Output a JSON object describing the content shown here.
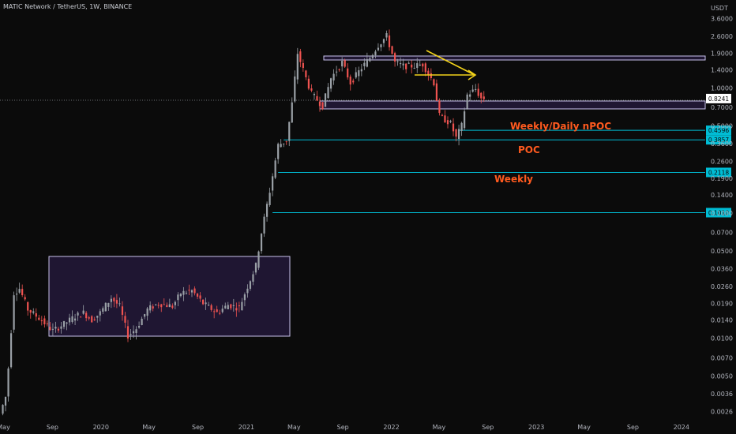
{
  "header": {
    "symbol_line": "MATIC Network / TetherUS, 1W, BINANCE",
    "currency": "USDT"
  },
  "colors": {
    "up": "#9aa0a6",
    "down": "#ef5350",
    "level": "#00bcd4",
    "annotation": "#ff5a1f",
    "arrow": "#f2d21b",
    "box_fill": "#1f1632",
    "box_stroke": "#c8c3ec",
    "background": "#0b0b0b"
  },
  "chart_data": {
    "type": "candlestick",
    "y_scale": "log",
    "ylim": [
      0.0022,
      4.5
    ],
    "xlim": [
      "2019-04-22",
      "2024-03-01"
    ],
    "y_ticks": [
      "3.6000",
      "2.6000",
      "1.9000",
      "1.4000",
      "1.0000",
      "0.7000",
      "0.5000",
      "0.3600",
      "0.2600",
      "0.1900",
      "0.1400",
      "0.1000",
      "0.0700",
      "0.0500",
      "0.0360",
      "0.0260",
      "0.0190",
      "0.0140",
      "0.0100",
      "0.0070",
      "0.0050",
      "0.0036",
      "0.0026"
    ],
    "x_ticks": [
      {
        "label": "May",
        "date": "2019-05-01"
      },
      {
        "label": "Sep",
        "date": "2019-09-01"
      },
      {
        "label": "2020",
        "date": "2020-01-01"
      },
      {
        "label": "May",
        "date": "2020-05-01"
      },
      {
        "label": "Sep",
        "date": "2020-09-01"
      },
      {
        "label": "2021",
        "date": "2021-01-01"
      },
      {
        "label": "May",
        "date": "2021-05-01"
      },
      {
        "label": "Sep",
        "date": "2021-09-01"
      },
      {
        "label": "2022",
        "date": "2022-01-01"
      },
      {
        "label": "May",
        "date": "2022-05-01"
      },
      {
        "label": "Sep",
        "date": "2022-09-01"
      },
      {
        "label": "2023",
        "date": "2023-01-01"
      },
      {
        "label": "May",
        "date": "2023-05-01"
      },
      {
        "label": "Sep",
        "date": "2023-09-01"
      },
      {
        "label": "2024",
        "date": "2024-01-01"
      }
    ],
    "price_path": [
      [
        "2019-04-29",
        0.0025
      ],
      [
        "2019-05-13",
        0.0034
      ],
      [
        "2019-05-20",
        0.0058
      ],
      [
        "2019-06-03",
        0.023
      ],
      [
        "2019-06-17",
        0.025
      ],
      [
        "2019-07-08",
        0.017
      ],
      [
        "2019-08-05",
        0.0145
      ],
      [
        "2019-09-09",
        0.0115
      ],
      [
        "2019-10-07",
        0.013
      ],
      [
        "2019-11-04",
        0.015
      ],
      [
        "2019-11-25",
        0.016
      ],
      [
        "2019-12-16",
        0.014
      ],
      [
        "2020-01-06",
        0.016
      ],
      [
        "2020-02-03",
        0.021
      ],
      [
        "2020-02-24",
        0.018
      ],
      [
        "2020-03-16",
        0.0105
      ],
      [
        "2020-04-06",
        0.012
      ],
      [
        "2020-05-04",
        0.017
      ],
      [
        "2020-06-01",
        0.019
      ],
      [
        "2020-07-06",
        0.018
      ],
      [
        "2020-07-27",
        0.023
      ],
      [
        "2020-08-24",
        0.024
      ],
      [
        "2020-09-21",
        0.019
      ],
      [
        "2020-10-26",
        0.016
      ],
      [
        "2020-11-23",
        0.0185
      ],
      [
        "2020-12-21",
        0.0175
      ],
      [
        "2021-01-11",
        0.026
      ],
      [
        "2021-02-01",
        0.038
      ],
      [
        "2021-02-15",
        0.07
      ],
      [
        "2021-03-08",
        0.15
      ],
      [
        "2021-03-29",
        0.35
      ],
      [
        "2021-04-19",
        0.38
      ],
      [
        "2021-05-03",
        0.75
      ],
      [
        "2021-05-17",
        1.9
      ],
      [
        "2021-06-07",
        1.2
      ],
      [
        "2021-06-21",
        0.9
      ],
      [
        "2021-07-19",
        0.72
      ],
      [
        "2021-08-09",
        1.2
      ],
      [
        "2021-09-06",
        1.6
      ],
      [
        "2021-09-27",
        1.1
      ],
      [
        "2021-10-25",
        1.45
      ],
      [
        "2021-11-15",
        1.75
      ],
      [
        "2021-12-06",
        2.2
      ],
      [
        "2021-12-27",
        2.6
      ],
      [
        "2022-01-17",
        1.6
      ],
      [
        "2022-02-07",
        1.5
      ],
      [
        "2022-03-07",
        1.5
      ],
      [
        "2022-03-28",
        1.55
      ],
      [
        "2022-04-25",
        1.1
      ],
      [
        "2022-05-09",
        0.6
      ],
      [
        "2022-06-06",
        0.52
      ],
      [
        "2022-06-20",
        0.4
      ],
      [
        "2022-07-04",
        0.5
      ],
      [
        "2022-07-18",
        0.88
      ],
      [
        "2022-08-08",
        0.98
      ],
      [
        "2022-08-22",
        0.8241
      ]
    ],
    "levels": [
      {
        "label": "0.4596",
        "value": 0.4596
      },
      {
        "label": "0.3857",
        "value": 0.3857
      },
      {
        "label": "0.2118",
        "value": 0.2118
      },
      {
        "label": "0.1010",
        "value": 0.101
      }
    ],
    "last_price": {
      "label": "0.8241",
      "value": 0.8241
    },
    "annotations": [
      "Weekly/Daily nPOC",
      "POC",
      "Weekly"
    ]
  }
}
